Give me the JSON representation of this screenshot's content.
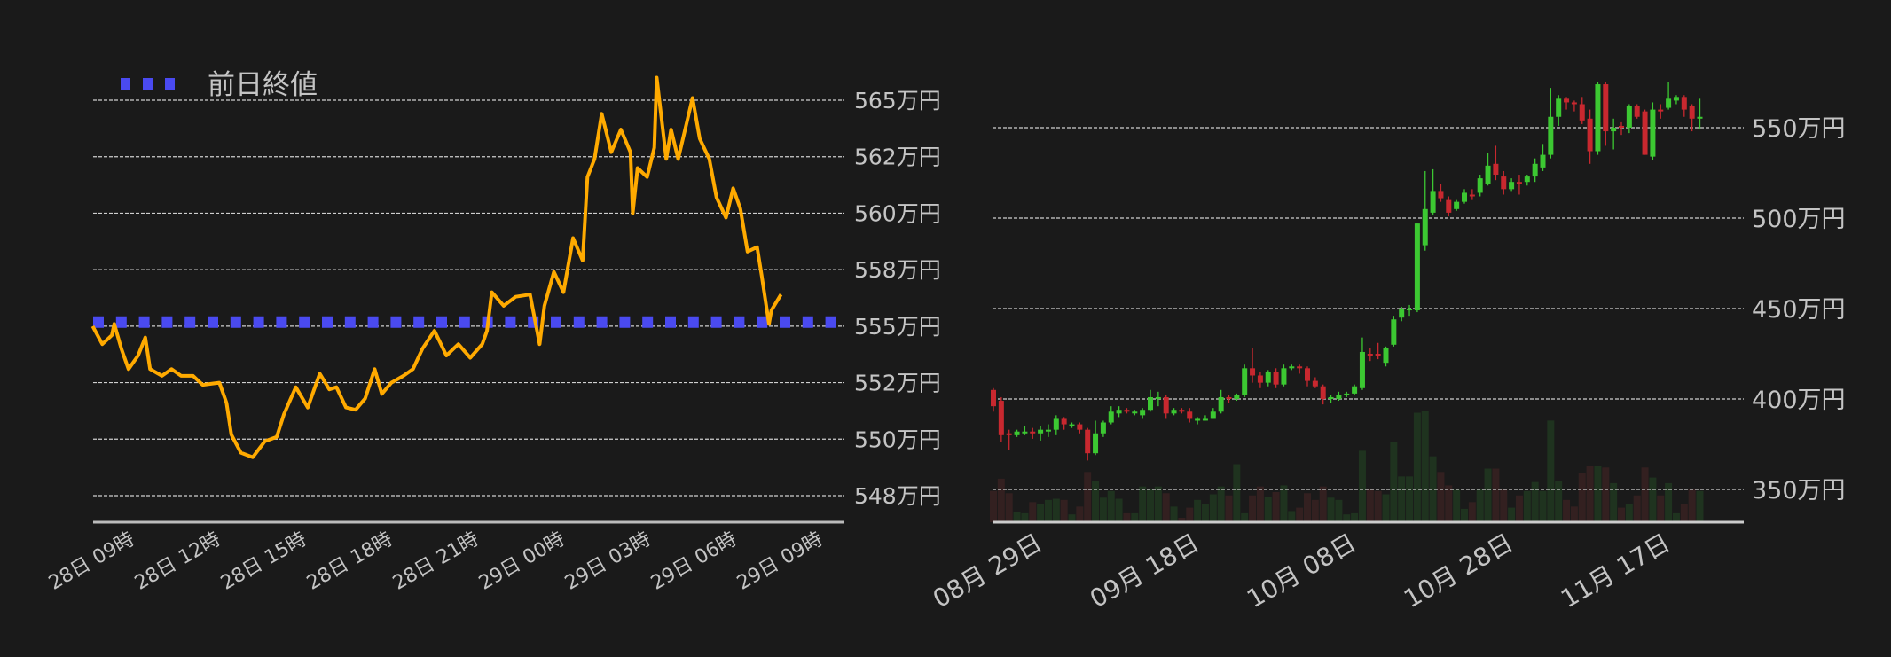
{
  "chart_data": [
    {
      "type": "line",
      "legend": {
        "label": "前日終値",
        "placement": "top-left"
      },
      "colors": {
        "line": "#ffaa00",
        "previous_close": "#4a4af0",
        "grid": "#cfcfcf",
        "axis": "#bbbbbb",
        "text": "#c4c4c4"
      },
      "grid": true,
      "previous_close": 555.2,
      "y_unit": "万円",
      "ylim": [
        546.5,
        566.9
      ],
      "y_ticks": [
        {
          "value": 565,
          "label": "565万円"
        },
        {
          "value": 562.5,
          "label": "562万円"
        },
        {
          "value": 560,
          "label": "560万円"
        },
        {
          "value": 557.5,
          "label": "558万円"
        },
        {
          "value": 555,
          "label": "555万円"
        },
        {
          "value": 552.5,
          "label": "552万円"
        },
        {
          "value": 550,
          "label": "550万円"
        },
        {
          "value": 547.5,
          "label": "548万円"
        }
      ],
      "x_ticks": [
        {
          "value": "28日 09:00",
          "label": "28日 09時"
        },
        {
          "value": "28日 12:00",
          "label": "28日 12時"
        },
        {
          "value": "28日 15:00",
          "label": "28日 15時"
        },
        {
          "value": "28日 18:00",
          "label": "28日 18時"
        },
        {
          "value": "28日 21:00",
          "label": "28日 21時"
        },
        {
          "value": "29日 00:00",
          "label": "29日 00時"
        },
        {
          "value": "29日 03:00",
          "label": "29日 03時"
        },
        {
          "value": "29日 06:00",
          "label": "29日 06時"
        },
        {
          "value": "29日 09:00",
          "label": "29日 09時"
        }
      ],
      "points": [
        [
          "28日 07:30",
          555.0
        ],
        [
          "28日 07:50",
          554.2
        ],
        [
          "28日 08:10",
          554.6
        ],
        [
          "28日 08:15",
          555.1
        ],
        [
          "28日 08:30",
          554.0
        ],
        [
          "28日 08:45",
          553.1
        ],
        [
          "28日 09:05",
          553.7
        ],
        [
          "28日 09:20",
          554.5
        ],
        [
          "28日 09:30",
          553.1
        ],
        [
          "28日 09:55",
          552.8
        ],
        [
          "28日 10:15",
          553.1
        ],
        [
          "28日 10:35",
          552.8
        ],
        [
          "28日 11:00",
          552.8
        ],
        [
          "28日 11:20",
          552.4
        ],
        [
          "28日 11:55",
          552.5
        ],
        [
          "28日 12:10",
          551.6
        ],
        [
          "28日 12:20",
          550.2
        ],
        [
          "28日 12:40",
          549.4
        ],
        [
          "28日 13:05",
          549.2
        ],
        [
          "28日 13:30",
          549.9
        ],
        [
          "28日 13:55",
          550.1
        ],
        [
          "28日 14:10",
          551.1
        ],
        [
          "28日 14:35",
          552.3
        ],
        [
          "28日 15:00",
          551.4
        ],
        [
          "28日 15:25",
          552.9
        ],
        [
          "28日 15:45",
          552.2
        ],
        [
          "28日 16:00",
          552.3
        ],
        [
          "28日 16:20",
          551.4
        ],
        [
          "28日 16:40",
          551.3
        ],
        [
          "28日 17:00",
          551.8
        ],
        [
          "28日 17:20",
          553.1
        ],
        [
          "28日 17:35",
          552.0
        ],
        [
          "28日 17:55",
          552.5
        ],
        [
          "28日 18:20",
          552.8
        ],
        [
          "28日 18:40",
          553.1
        ],
        [
          "28日 19:00",
          554.0
        ],
        [
          "28日 19:25",
          554.8
        ],
        [
          "28日 19:50",
          553.7
        ],
        [
          "28日 20:15",
          554.2
        ],
        [
          "28日 20:40",
          553.6
        ],
        [
          "28日 21:05",
          554.2
        ],
        [
          "28日 21:15",
          554.8
        ],
        [
          "28日 21:25",
          556.5
        ],
        [
          "28日 21:50",
          555.9
        ],
        [
          "28日 22:15",
          556.3
        ],
        [
          "28日 22:45",
          556.4
        ],
        [
          "28日 23:05",
          554.2
        ],
        [
          "28日 23:15",
          555.9
        ],
        [
          "28日 23:35",
          557.4
        ],
        [
          "28日 23:55",
          556.5
        ],
        [
          "29日 00:15",
          558.9
        ],
        [
          "29日 00:35",
          557.9
        ],
        [
          "29日 00:45",
          561.6
        ],
        [
          "29日 01:00",
          562.4
        ],
        [
          "29日 01:15",
          564.4
        ],
        [
          "29日 01:35",
          562.7
        ],
        [
          "29日 01:55",
          563.7
        ],
        [
          "29日 02:15",
          562.7
        ],
        [
          "29日 02:20",
          560.0
        ],
        [
          "29日 02:30",
          562.0
        ],
        [
          "29日 02:50",
          561.6
        ],
        [
          "29日 03:05",
          562.9
        ],
        [
          "29日 03:10",
          566.0
        ],
        [
          "29日 03:30",
          562.4
        ],
        [
          "29日 03:40",
          563.7
        ],
        [
          "29日 03:55",
          562.4
        ],
        [
          "29日 04:15",
          564.2
        ],
        [
          "29日 04:25",
          565.1
        ],
        [
          "29日 04:40",
          563.3
        ],
        [
          "29日 05:00",
          562.4
        ],
        [
          "29日 05:15",
          560.7
        ],
        [
          "29日 05:35",
          559.8
        ],
        [
          "29日 05:50",
          561.1
        ],
        [
          "29日 06:05",
          560.2
        ],
        [
          "29日 06:20",
          558.3
        ],
        [
          "29日 06:40",
          558.5
        ],
        [
          "29日 06:50",
          557.2
        ],
        [
          "29日 07:05",
          555.1
        ],
        [
          "29日 07:10",
          555.7
        ],
        [
          "29日 07:30",
          556.4
        ]
      ]
    },
    {
      "type": "candlestick",
      "colors": {
        "up": "#3cc832",
        "down": "#c8282f",
        "volume_up": "#1f331f",
        "volume_down": "#332020",
        "grid": "#cfcfcf",
        "axis": "#cccccc",
        "text": "#c4c4c4"
      },
      "grid": true,
      "y_unit": "万円",
      "ylim": [
        332,
        582
      ],
      "y_ticks": [
        {
          "value": 550,
          "label": "550万円"
        },
        {
          "value": 500,
          "label": "500万円"
        },
        {
          "value": 450,
          "label": "450万円"
        },
        {
          "value": 400,
          "label": "400万円"
        },
        {
          "value": 350,
          "label": "350万円"
        }
      ],
      "x_ticks": [
        {
          "value": "08-29",
          "label": "08月 29日"
        },
        {
          "value": "09-18",
          "label": "09月 18日"
        },
        {
          "value": "10-08",
          "label": "10月 08日"
        },
        {
          "value": "10-28",
          "label": "10月 28日"
        },
        {
          "value": "11-17",
          "label": "11月 17日"
        }
      ],
      "candle_fields": [
        "date",
        "open",
        "high",
        "low",
        "close",
        "volume_relative"
      ],
      "candles": [
        [
          "08-23",
          405,
          406,
          393,
          396,
          28
        ],
        [
          "08-24",
          399,
          401,
          376,
          380,
          39
        ],
        [
          "08-25",
          381,
          383,
          372,
          380,
          26
        ],
        [
          "08-26",
          380,
          383,
          379,
          382,
          9
        ],
        [
          "08-27",
          381,
          385,
          380,
          382,
          8
        ],
        [
          "08-28",
          382,
          384,
          378,
          381,
          18
        ],
        [
          "08-29",
          381,
          385,
          377,
          383,
          16
        ],
        [
          "08-30",
          382,
          386,
          379,
          383,
          20
        ],
        [
          "08-31",
          383,
          391,
          380,
          389,
          21
        ],
        [
          "09-01",
          389,
          390,
          383,
          386,
          20
        ],
        [
          "09-02",
          386,
          387,
          384,
          386,
          7
        ],
        [
          "09-03",
          386,
          387,
          381,
          383,
          14
        ],
        [
          "09-04",
          383,
          384,
          366,
          370,
          45
        ],
        [
          "09-05",
          370,
          388,
          369,
          381,
          37
        ],
        [
          "09-06",
          381,
          388,
          379,
          387,
          22
        ],
        [
          "09-07",
          387,
          396,
          386,
          393,
          28
        ],
        [
          "09-08",
          392,
          396,
          390,
          394,
          21
        ],
        [
          "09-09",
          394,
          395,
          392,
          393,
          8
        ],
        [
          "09-10",
          393,
          394,
          391,
          393,
          8
        ],
        [
          "09-11",
          391,
          395,
          389,
          394,
          32
        ],
        [
          "09-12",
          394,
          405,
          393,
          401,
          30
        ],
        [
          "09-13",
          400,
          404,
          396,
          401,
          32
        ],
        [
          "09-14",
          401,
          402,
          389,
          392,
          26
        ],
        [
          "09-15",
          392,
          395,
          391,
          394,
          14
        ],
        [
          "09-16",
          394,
          395,
          392,
          393,
          4
        ],
        [
          "09-17",
          393,
          395,
          387,
          389,
          13
        ],
        [
          "09-18",
          388,
          390,
          386,
          389,
          20
        ],
        [
          "09-19",
          389,
          391,
          388,
          389,
          16
        ],
        [
          "09-20",
          389,
          395,
          389,
          393,
          25
        ],
        [
          "09-21",
          393,
          405,
          392,
          401,
          32
        ],
        [
          "09-22",
          401,
          402,
          398,
          400,
          24
        ],
        [
          "09-23",
          400,
          403,
          399,
          402,
          52
        ],
        [
          "09-24",
          402,
          419,
          401,
          417,
          8
        ],
        [
          "09-25",
          417,
          428,
          409,
          413,
          24
        ],
        [
          "09-26",
          413,
          415,
          406,
          409,
          32
        ],
        [
          "09-27",
          409,
          416,
          407,
          415,
          23
        ],
        [
          "09-28",
          415,
          417,
          406,
          408,
          27
        ],
        [
          "09-29",
          408,
          419,
          407,
          417,
          33
        ],
        [
          "09-30",
          417,
          419,
          416,
          418,
          10
        ],
        [
          "10-01",
          418,
          419,
          414,
          417,
          13
        ],
        [
          "10-02",
          417,
          418,
          407,
          410,
          26
        ],
        [
          "10-03",
          410,
          412,
          406,
          407,
          20
        ],
        [
          "10-04",
          407,
          408,
          397,
          400,
          32
        ],
        [
          "10-05",
          400,
          402,
          398,
          401,
          22
        ],
        [
          "10-06",
          400,
          404,
          399,
          402,
          20
        ],
        [
          "10-07",
          402,
          404,
          401,
          403,
          7
        ],
        [
          "10-08",
          403,
          408,
          402,
          407,
          8
        ],
        [
          "10-09",
          406,
          434,
          405,
          426,
          64
        ],
        [
          "10-10",
          425,
          428,
          421,
          424,
          30
        ],
        [
          "10-11",
          425,
          431,
          422,
          424,
          28
        ],
        [
          "10-12",
          420,
          429,
          418,
          428,
          25
        ],
        [
          "10-13",
          430,
          446,
          429,
          444,
          72
        ],
        [
          "10-14",
          445,
          451,
          443,
          450,
          41
        ],
        [
          "10-15",
          449,
          452,
          446,
          450,
          41
        ],
        [
          "10-16",
          449,
          497,
          448,
          497,
          98
        ],
        [
          "10-17",
          485,
          526,
          482,
          505,
          100
        ],
        [
          "10-18",
          503,
          527,
          502,
          515,
          59
        ],
        [
          "10-19",
          515,
          519,
          509,
          511,
          45
        ],
        [
          "10-20",
          510,
          512,
          501,
          503,
          33
        ],
        [
          "10-21",
          505,
          510,
          504,
          509,
          29
        ],
        [
          "10-22",
          509,
          516,
          508,
          514,
          12
        ],
        [
          "10-23",
          513,
          516,
          510,
          512,
          18
        ],
        [
          "10-24",
          514,
          524,
          512,
          522,
          30
        ],
        [
          "10-25",
          519,
          536,
          518,
          529,
          48
        ],
        [
          "10-26",
          530,
          540,
          521,
          524,
          48
        ],
        [
          "10-27",
          523,
          526,
          513,
          516,
          30
        ],
        [
          "10-28",
          516,
          522,
          515,
          520,
          13
        ],
        [
          "10-29",
          520,
          524,
          513,
          519,
          24
        ],
        [
          "10-30",
          520,
          524,
          518,
          523,
          28
        ],
        [
          "10-31",
          523,
          533,
          520,
          530,
          36
        ],
        [
          "11-01",
          528,
          541,
          526,
          535,
          28
        ],
        [
          "11-02",
          535,
          572,
          533,
          556,
          91
        ],
        [
          "11-03",
          556,
          568,
          551,
          566,
          37
        ],
        [
          "11-04",
          566,
          567,
          560,
          564,
          20
        ],
        [
          "11-05",
          564,
          565,
          559,
          563,
          14
        ],
        [
          "11-06",
          563,
          567,
          552,
          554,
          44
        ],
        [
          "11-07",
          555,
          560,
          530,
          537,
          50
        ],
        [
          "11-08",
          537,
          575,
          535,
          574,
          50
        ],
        [
          "11-09",
          574,
          575,
          540,
          548,
          49
        ],
        [
          "11-10",
          548,
          555,
          538,
          550,
          35
        ],
        [
          "11-11",
          551,
          553,
          546,
          550,
          13
        ],
        [
          "11-12",
          550,
          563,
          547,
          562,
          16
        ],
        [
          "11-13",
          562,
          563,
          555,
          556,
          24
        ],
        [
          "11-14",
          559,
          560,
          535,
          535,
          49
        ],
        [
          "11-15",
          534,
          564,
          532,
          560,
          40
        ],
        [
          "11-16",
          560,
          563,
          555,
          559,
          24
        ],
        [
          "11-17",
          561,
          575,
          560,
          566,
          35
        ],
        [
          "11-18",
          565,
          568,
          563,
          567,
          8
        ],
        [
          "11-19",
          567,
          568,
          556,
          560,
          16
        ],
        [
          "11-20",
          562,
          563,
          548,
          555,
          30
        ],
        [
          "11-21",
          555,
          566,
          549,
          556,
          28
        ]
      ]
    }
  ]
}
